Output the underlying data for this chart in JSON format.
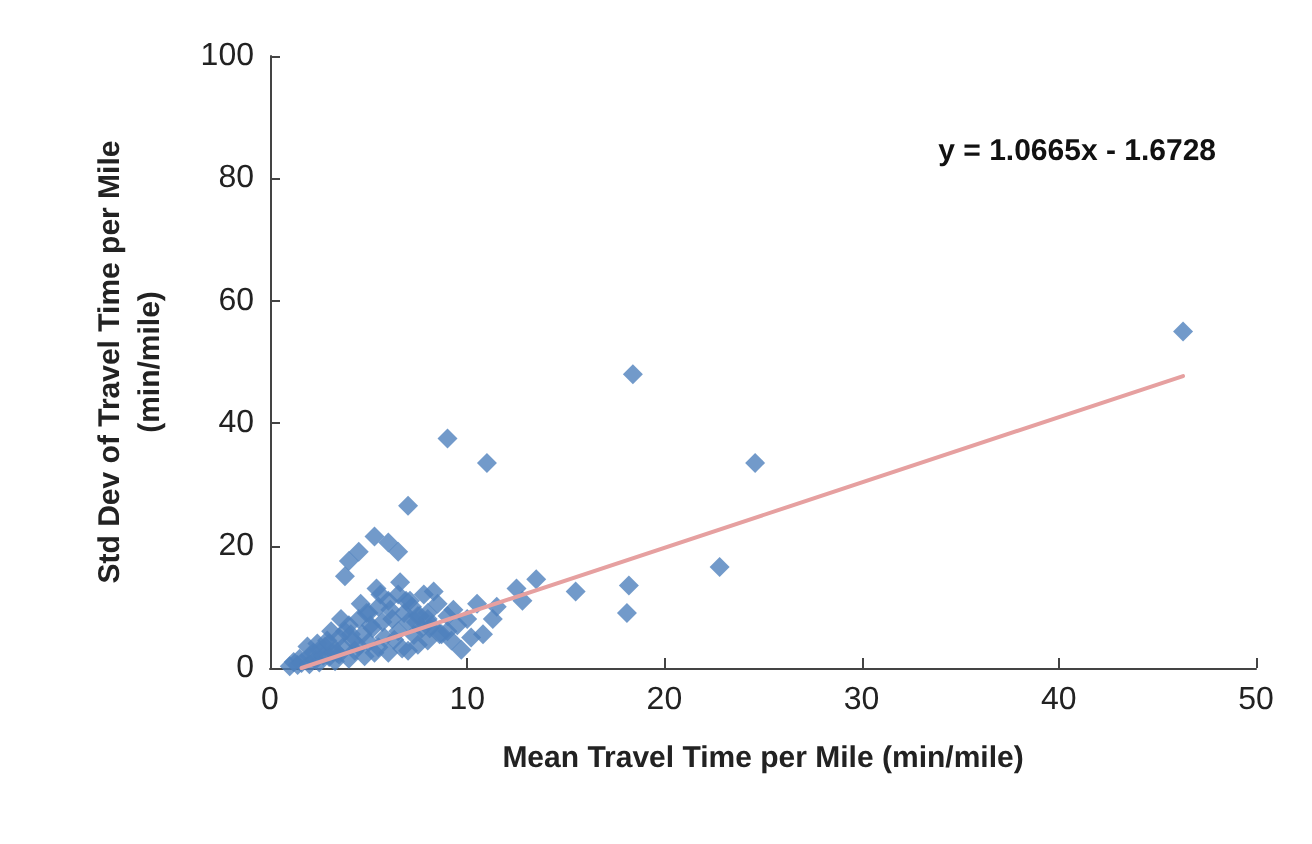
{
  "chart_data": {
    "type": "scatter",
    "xlabel": "Mean Travel Time per Mile (min/mile)",
    "ylabel": "Std Dev of Travel Time per Mile\n(min/mile)",
    "xlim": [
      0,
      50
    ],
    "xticks": [
      0,
      10,
      20,
      30,
      40,
      50
    ],
    "ylim": [
      0,
      100
    ],
    "yticks": [
      0,
      20,
      40,
      60,
      80,
      100
    ],
    "grid": false,
    "marker": "diamond",
    "annotations": [
      "y = 1.0665x - 1.6728"
    ],
    "series": [
      {
        "color": "#4f81bd",
        "x": [
          46.3,
          18.4,
          24.6,
          22.8,
          15.5,
          18.2,
          18.1,
          9,
          11,
          7,
          5.3,
          6,
          6.5,
          4,
          4.5,
          3.8,
          12.5,
          13.5,
          12.8,
          11.5,
          9.7,
          8,
          1,
          1.2,
          1.4,
          1.5,
          1.6,
          2,
          2,
          2.2,
          2.3,
          2.5,
          2.5,
          2.7,
          2.8,
          3,
          3,
          3.2,
          3.3,
          3.5,
          3.5,
          3.7,
          3.8,
          4,
          4,
          4.2,
          4.3,
          4.5,
          4.5,
          4.7,
          4.8,
          5,
          5,
          5.2,
          5.3,
          5.5,
          5.5,
          5.7,
          5.8,
          6,
          6,
          6.2,
          6.3,
          6.5,
          6.5,
          6.7,
          6.8,
          7,
          7,
          7.2,
          7.3,
          7.5,
          7.5,
          7.7,
          7.8,
          8,
          8,
          8.2,
          8.5,
          8.7,
          9,
          9,
          9.3,
          9.5,
          10,
          10.2,
          10.5,
          2.4,
          3.1,
          3.6,
          4.1,
          4.6,
          5.1,
          5.6,
          6.1,
          6.6,
          7.1,
          7.6,
          8.1,
          8.6,
          5.4,
          6.9,
          7.4,
          8.3,
          9.2,
          4.9,
          3.4,
          2.9,
          1.9,
          10.8,
          11.3
        ],
        "values": [
          55,
          48,
          33.5,
          16.5,
          12.5,
          13.5,
          9,
          37.5,
          33.5,
          26.5,
          21.5,
          20.5,
          19,
          17.5,
          19,
          15,
          13,
          14.5,
          11,
          10,
          3,
          8,
          0.3,
          1,
          0.5,
          1.5,
          0.8,
          2,
          0.6,
          2.5,
          1.3,
          3,
          0.9,
          2,
          3.5,
          1.8,
          4,
          2.6,
          1.1,
          5,
          2.2,
          3.4,
          6,
          1.5,
          7,
          4.5,
          2.8,
          8,
          3.6,
          5.5,
          1.9,
          9,
          4.2,
          6.5,
          2.5,
          10,
          3.4,
          7.5,
          5,
          11,
          2.5,
          8,
          4.6,
          12,
          6,
          3.2,
          9,
          7.5,
          2.8,
          10,
          5.4,
          8.5,
          3.8,
          6.5,
          12,
          9,
          4.5,
          7,
          10.5,
          5.5,
          8.5,
          6,
          9.5,
          7,
          8,
          5,
          10.5,
          4,
          6,
          8,
          5.5,
          10.5,
          7,
          12,
          9.5,
          14,
          11,
          8.5,
          6.5,
          5.5,
          13,
          11,
          7.5,
          12.5,
          4.5,
          9,
          2.5,
          4.5,
          3.5,
          5.5,
          8
        ]
      },
      {
        "type": "line",
        "marker": "none",
        "color": "#e6a0a0",
        "x": [
          1.6,
          46.3
        ],
        "values": [
          0,
          47.7
        ]
      }
    ]
  }
}
